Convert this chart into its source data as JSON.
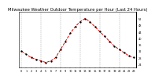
{
  "title": "Milwaukee Weather Outdoor Temperature per Hour (Last 24 Hours)",
  "hours": [
    0,
    1,
    2,
    3,
    4,
    5,
    6,
    7,
    8,
    9,
    10,
    11,
    12,
    13,
    14,
    15,
    16,
    17,
    18,
    19,
    20,
    21,
    22,
    23
  ],
  "temps": [
    32,
    30,
    28,
    27,
    26,
    25,
    26,
    28,
    33,
    38,
    43,
    47,
    50,
    52,
    50,
    47,
    44,
    41,
    38,
    35,
    33,
    31,
    29,
    28
  ],
  "line_color": "#dd0000",
  "marker_color": "#000000",
  "bg_color": "#ffffff",
  "grid_color": "#888888",
  "title_color": "#000000",
  "ylim": [
    22,
    56
  ],
  "ytick_vals": [
    24,
    28,
    32,
    36,
    40,
    44,
    48,
    52
  ],
  "ytick_labels": [
    "24",
    "28",
    "32",
    "36",
    "40",
    "44",
    "48",
    "52"
  ],
  "xtick_step": 1,
  "vgrid_positions": [
    0,
    4,
    8,
    12,
    16,
    20
  ],
  "title_fontsize": 3.8,
  "tick_fontsize": 2.5,
  "linewidth": 0.7,
  "markersize": 1.3
}
